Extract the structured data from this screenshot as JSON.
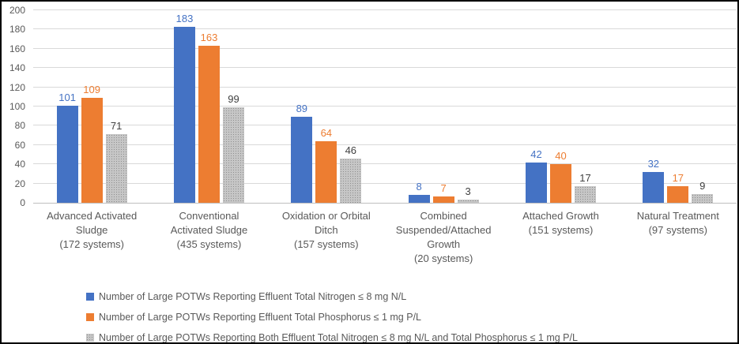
{
  "chart_data": {
    "type": "bar",
    "title": "",
    "xlabel": "",
    "ylabel": "",
    "ylim": [
      0,
      200
    ],
    "ytick_step": 20,
    "grid": true,
    "legend_position": "bottom-left",
    "categories": [
      "Advanced Activated\nSludge\n(172 systems)",
      "Conventional\nActivated Sludge\n(435 systems)",
      "Oxidation or Orbital\nDitch\n(157 systems)",
      "Combined\nSuspended/Attached\nGrowth\n(20 systems)",
      "Attached Growth\n(151 systems)",
      "Natural Treatment\n(97 systems)"
    ],
    "series": [
      {
        "name": "Number of Large POTWs Reporting Effluent Total Nitrogen ≤ 8 mg N/L",
        "color": "#4472C4",
        "label_color": "#4472C4",
        "pattern": false,
        "values": [
          101,
          183,
          89,
          8,
          42,
          32
        ]
      },
      {
        "name": "Number of Large POTWs Reporting Effluent Total Phosphorus ≤ 1 mg P/L",
        "color": "#ED7D31",
        "label_color": "#ED7D31",
        "pattern": false,
        "values": [
          109,
          163,
          64,
          7,
          40,
          17
        ]
      },
      {
        "name": "Number of Large POTWs Reporting Both Effluent Total Nitrogen ≤ 8 mg N/L and Total Phosphorus ≤ 1 mg P/L",
        "color": "#ABABAB",
        "label_color": "#404040",
        "pattern": true,
        "values": [
          71,
          99,
          46,
          3,
          17,
          9
        ]
      }
    ],
    "colors": {
      "gridline": "#D9D9D9",
      "axis_line": "#BFBFBF",
      "axis_text": "#595959"
    }
  }
}
